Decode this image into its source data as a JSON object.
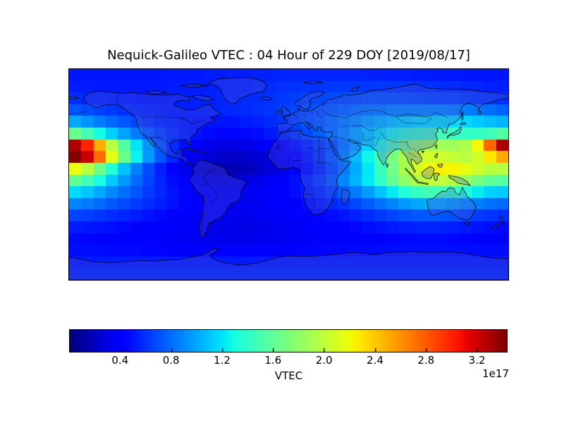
{
  "title": "Nequick-Galileo VTEC : 04 Hour of 229 DOY [2019/08/17]",
  "colors": {
    "background": "#ffffff",
    "frame": "#000000",
    "coastline": "#000000",
    "land_overlay": "rgba(82,82,205,0.30)",
    "colormap_low": "#00008f",
    "colormap_high": "#800000"
  },
  "chart_data": {
    "type": "heatmap",
    "title": "Nequick-Galileo VTEC : 04 Hour of 229 DOY [2019/08/17]",
    "projection": "equirectangular",
    "lon_range": [
      -180,
      180
    ],
    "lat_range": [
      -90,
      90
    ],
    "grid_cell_deg": 10,
    "colormap": "jet",
    "grid_lines": false,
    "vmin": 0,
    "vmax": 3.44,
    "value_units": "electrons/m^2",
    "value_scale_exponent": "1e17",
    "lat_centers_north_to_south": [
      85,
      75,
      65,
      55,
      45,
      35,
      25,
      15,
      5,
      -5,
      -15,
      -25,
      -35,
      -45,
      -55,
      -65,
      -75,
      -85
    ],
    "lon_centers_west_to_east": [
      -175,
      -165,
      -155,
      -145,
      -135,
      -125,
      -115,
      -105,
      -95,
      -85,
      -75,
      -65,
      -55,
      -45,
      -35,
      -25,
      -15,
      -5,
      5,
      15,
      25,
      35,
      45,
      55,
      65,
      75,
      85,
      95,
      105,
      115,
      125,
      135,
      145,
      155,
      165,
      175
    ],
    "values_1e17": [
      [
        0.5,
        0.5,
        0.5,
        0.5,
        0.5,
        0.5,
        0.5,
        0.5,
        0.51,
        0.51,
        0.51,
        0.52,
        0.52,
        0.53,
        0.53,
        0.54,
        0.54,
        0.55,
        0.55,
        0.55,
        0.55,
        0.55,
        0.55,
        0.55,
        0.54,
        0.54,
        0.53,
        0.53,
        0.52,
        0.52,
        0.51,
        0.51,
        0.5,
        0.5,
        0.5,
        0.5
      ],
      [
        0.52,
        0.52,
        0.51,
        0.51,
        0.51,
        0.51,
        0.51,
        0.51,
        0.52,
        0.52,
        0.53,
        0.53,
        0.54,
        0.55,
        0.56,
        0.57,
        0.58,
        0.59,
        0.6,
        0.61,
        0.61,
        0.62,
        0.62,
        0.62,
        0.62,
        0.62,
        0.61,
        0.61,
        0.6,
        0.59,
        0.58,
        0.57,
        0.56,
        0.55,
        0.54,
        0.53
      ],
      [
        0.58,
        0.56,
        0.55,
        0.54,
        0.53,
        0.52,
        0.52,
        0.52,
        0.52,
        0.53,
        0.53,
        0.54,
        0.55,
        0.56,
        0.57,
        0.58,
        0.6,
        0.62,
        0.64,
        0.66,
        0.67,
        0.68,
        0.69,
        0.7,
        0.71,
        0.71,
        0.71,
        0.7,
        0.69,
        0.68,
        0.67,
        0.66,
        0.64,
        0.62,
        0.61,
        0.59
      ],
      [
        0.72,
        0.68,
        0.65,
        0.62,
        0.59,
        0.57,
        0.55,
        0.54,
        0.53,
        0.53,
        0.53,
        0.54,
        0.55,
        0.56,
        0.57,
        0.59,
        0.61,
        0.64,
        0.67,
        0.7,
        0.73,
        0.76,
        0.79,
        0.82,
        0.85,
        0.87,
        0.89,
        0.9,
        0.9,
        0.9,
        0.89,
        0.87,
        0.85,
        0.83,
        0.8,
        0.76
      ],
      [
        1.0,
        0.93,
        0.85,
        0.78,
        0.72,
        0.67,
        0.62,
        0.58,
        0.55,
        0.52,
        0.5,
        0.49,
        0.49,
        0.5,
        0.52,
        0.54,
        0.57,
        0.61,
        0.66,
        0.71,
        0.76,
        0.82,
        0.88,
        0.94,
        1.0,
        1.06,
        1.11,
        1.15,
        1.18,
        1.2,
        1.2,
        1.18,
        1.15,
        1.11,
        1.07,
        1.03
      ],
      [
        1.65,
        1.48,
        1.29,
        1.13,
        0.98,
        0.85,
        0.75,
        0.66,
        0.59,
        0.53,
        0.49,
        0.46,
        0.44,
        0.44,
        0.45,
        0.47,
        0.51,
        0.56,
        0.62,
        0.68,
        0.75,
        0.83,
        0.92,
        1.02,
        1.12,
        1.22,
        1.31,
        1.39,
        1.44,
        1.47,
        1.46,
        1.44,
        1.41,
        1.41,
        1.46,
        1.55
      ],
      [
        3.3,
        3.0,
        2.5,
        1.98,
        1.55,
        1.2,
        0.93,
        0.73,
        0.58,
        0.47,
        0.39,
        0.33,
        0.3,
        0.29,
        0.31,
        0.34,
        0.38,
        0.43,
        0.49,
        0.56,
        0.64,
        0.73,
        0.85,
        0.99,
        1.15,
        1.33,
        1.51,
        1.68,
        1.8,
        1.87,
        1.88,
        1.87,
        1.93,
        2.22,
        2.76,
        3.3
      ],
      [
        3.42,
        3.22,
        2.74,
        2.16,
        1.65,
        1.25,
        0.95,
        0.72,
        0.55,
        0.42,
        0.33,
        0.26,
        0.22,
        0.21,
        0.22,
        0.25,
        0.3,
        0.36,
        0.43,
        0.52,
        0.62,
        0.74,
        0.89,
        1.06,
        1.26,
        1.48,
        1.7,
        1.9,
        2.02,
        2.07,
        2.07,
        2.02,
        1.97,
        2.07,
        2.28,
        2.52
      ],
      [
        2.18,
        1.97,
        1.66,
        1.35,
        1.08,
        0.86,
        0.68,
        0.53,
        0.41,
        0.32,
        0.25,
        0.2,
        0.17,
        0.16,
        0.18,
        0.21,
        0.26,
        0.32,
        0.39,
        0.47,
        0.57,
        0.69,
        0.84,
        1.01,
        1.21,
        1.44,
        1.68,
        1.91,
        2.09,
        2.2,
        2.24,
        2.23,
        2.16,
        2.06,
        1.98,
        1.98
      ],
      [
        1.62,
        1.48,
        1.3,
        1.11,
        0.94,
        0.79,
        0.66,
        0.55,
        0.46,
        0.39,
        0.33,
        0.29,
        0.27,
        0.27,
        0.29,
        0.32,
        0.36,
        0.42,
        0.48,
        0.56,
        0.65,
        0.76,
        0.89,
        1.04,
        1.22,
        1.41,
        1.62,
        1.81,
        1.94,
        2.01,
        2.01,
        1.95,
        1.84,
        1.7,
        1.6,
        1.56
      ],
      [
        1.18,
        1.1,
        1.0,
        0.89,
        0.8,
        0.71,
        0.63,
        0.56,
        0.49,
        0.44,
        0.39,
        0.36,
        0.34,
        0.33,
        0.34,
        0.36,
        0.39,
        0.43,
        0.47,
        0.53,
        0.59,
        0.66,
        0.75,
        0.85,
        0.96,
        1.09,
        1.22,
        1.34,
        1.43,
        1.48,
        1.47,
        1.42,
        1.33,
        1.23,
        1.14,
        1.11
      ],
      [
        0.88,
        0.84,
        0.79,
        0.73,
        0.68,
        0.63,
        0.58,
        0.53,
        0.48,
        0.44,
        0.4,
        0.37,
        0.35,
        0.34,
        0.34,
        0.35,
        0.37,
        0.4,
        0.43,
        0.47,
        0.51,
        0.56,
        0.61,
        0.67,
        0.74,
        0.81,
        0.88,
        0.95,
        1.0,
        1.02,
        1.01,
        0.97,
        0.92,
        0.86,
        0.81,
        0.79
      ],
      [
        0.66,
        0.64,
        0.61,
        0.58,
        0.55,
        0.52,
        0.49,
        0.46,
        0.43,
        0.4,
        0.38,
        0.36,
        0.34,
        0.33,
        0.33,
        0.34,
        0.35,
        0.37,
        0.39,
        0.41,
        0.44,
        0.47,
        0.5,
        0.54,
        0.58,
        0.62,
        0.66,
        0.69,
        0.72,
        0.73,
        0.72,
        0.7,
        0.67,
        0.63,
        0.6,
        0.59
      ],
      [
        0.52,
        0.5,
        0.49,
        0.47,
        0.45,
        0.43,
        0.41,
        0.39,
        0.37,
        0.36,
        0.34,
        0.33,
        0.32,
        0.31,
        0.31,
        0.32,
        0.33,
        0.34,
        0.35,
        0.37,
        0.38,
        0.4,
        0.42,
        0.45,
        0.47,
        0.49,
        0.51,
        0.53,
        0.54,
        0.55,
        0.54,
        0.53,
        0.51,
        0.49,
        0.47,
        0.46
      ],
      [
        0.45,
        0.44,
        0.43,
        0.42,
        0.41,
        0.4,
        0.38,
        0.37,
        0.36,
        0.35,
        0.34,
        0.33,
        0.33,
        0.32,
        0.32,
        0.33,
        0.33,
        0.34,
        0.35,
        0.36,
        0.37,
        0.38,
        0.39,
        0.41,
        0.42,
        0.43,
        0.44,
        0.45,
        0.46,
        0.46,
        0.46,
        0.45,
        0.44,
        0.43,
        0.43,
        0.42
      ],
      [
        0.47,
        0.47,
        0.46,
        0.46,
        0.45,
        0.45,
        0.44,
        0.44,
        0.43,
        0.43,
        0.42,
        0.42,
        0.42,
        0.42,
        0.42,
        0.42,
        0.42,
        0.43,
        0.43,
        0.44,
        0.44,
        0.45,
        0.45,
        0.46,
        0.46,
        0.47,
        0.47,
        0.47,
        0.48,
        0.48,
        0.48,
        0.47,
        0.47,
        0.47,
        0.47,
        0.47
      ],
      [
        0.52,
        0.52,
        0.52,
        0.52,
        0.52,
        0.52,
        0.52,
        0.52,
        0.52,
        0.52,
        0.52,
        0.52,
        0.52,
        0.52,
        0.52,
        0.52,
        0.52,
        0.52,
        0.52,
        0.52,
        0.52,
        0.52,
        0.52,
        0.52,
        0.52,
        0.52,
        0.52,
        0.52,
        0.52,
        0.52,
        0.52,
        0.52,
        0.52,
        0.52,
        0.52,
        0.52
      ],
      [
        0.55,
        0.55,
        0.55,
        0.55,
        0.55,
        0.55,
        0.55,
        0.55,
        0.55,
        0.55,
        0.55,
        0.55,
        0.55,
        0.55,
        0.55,
        0.55,
        0.55,
        0.55,
        0.55,
        0.55,
        0.55,
        0.55,
        0.55,
        0.55,
        0.55,
        0.55,
        0.55,
        0.55,
        0.55,
        0.55,
        0.55,
        0.55,
        0.55,
        0.55,
        0.55,
        0.55
      ]
    ],
    "colorbar": {
      "label": "VTEC",
      "offset_label": "1e17",
      "orientation": "horizontal",
      "position": "bottom",
      "ticks": [
        "0.4",
        "0.8",
        "1.2",
        "1.6",
        "2.0",
        "2.4",
        "2.8",
        "3.2"
      ],
      "tick_values": [
        0.4,
        0.8,
        1.2,
        1.6,
        2.0,
        2.4,
        2.8,
        3.2
      ]
    }
  }
}
